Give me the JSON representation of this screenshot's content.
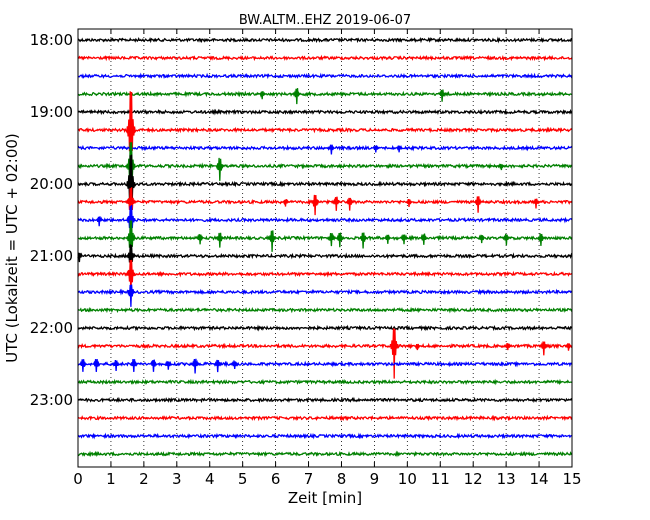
{
  "chart_data": {
    "type": "line",
    "title": "BW.ALTM..EHZ 2019-06-07",
    "xlabel": "Zeit  [min]",
    "ylabel": "UTC (Lokalzeit = UTC + 02:00)",
    "xlim": [
      0,
      15
    ],
    "x_ticks": [
      "0",
      "1",
      "2",
      "3",
      "4",
      "5",
      "6",
      "7",
      "8",
      "9",
      "10",
      "11",
      "12",
      "13",
      "14",
      "15"
    ],
    "y_tick_labels": [
      {
        "label": "18:00",
        "trace": 0
      },
      {
        "label": "19:00",
        "trace": 4
      },
      {
        "label": "20:00",
        "trace": 8
      },
      {
        "label": "21:00",
        "trace": 12
      },
      {
        "label": "22:00",
        "trace": 16
      },
      {
        "label": "23:00",
        "trace": 20
      }
    ],
    "grid": "vertical dotted",
    "trace_interval_min": 15,
    "trace_colors": [
      "#000000",
      "#ff0000",
      "#0000ff",
      "#008000"
    ],
    "traces": [
      {
        "start": "18:00",
        "events": []
      },
      {
        "start": "18:15",
        "events": []
      },
      {
        "start": "18:30",
        "events": []
      },
      {
        "start": "18:45",
        "events": [
          {
            "t": 5.6,
            "amp": 0.3
          },
          {
            "t": 6.65,
            "amp": 0.55
          },
          {
            "t": 11.05,
            "amp": 0.4
          }
        ]
      },
      {
        "start": "19:00",
        "events": []
      },
      {
        "start": "19:15",
        "events": [
          {
            "t": 1.6,
            "amp": 4.0
          }
        ]
      },
      {
        "start": "19:30",
        "events": [
          {
            "t": 7.7,
            "amp": 0.35
          },
          {
            "t": 9.05,
            "amp": 0.25
          },
          {
            "t": 9.75,
            "amp": 0.25
          }
        ]
      },
      {
        "start": "19:45",
        "events": [
          {
            "t": 1.6,
            "amp": 2.5
          },
          {
            "t": 4.3,
            "amp": 0.8
          },
          {
            "t": 12.85,
            "amp": 0.2
          }
        ]
      },
      {
        "start": "20:00",
        "events": [
          {
            "t": 1.6,
            "amp": 3.0
          }
        ]
      },
      {
        "start": "20:15",
        "events": [
          {
            "t": 1.6,
            "amp": 1.5
          },
          {
            "t": 6.3,
            "amp": 0.25
          },
          {
            "t": 7.2,
            "amp": 0.75
          },
          {
            "t": 7.85,
            "amp": 0.5
          },
          {
            "t": 8.25,
            "amp": 0.45
          },
          {
            "t": 10.05,
            "amp": 0.3
          },
          {
            "t": 12.15,
            "amp": 0.6
          },
          {
            "t": 13.9,
            "amp": 0.35
          }
        ]
      },
      {
        "start": "20:30",
        "events": [
          {
            "t": 0.65,
            "amp": 0.35
          },
          {
            "t": 1.6,
            "amp": 1.5
          }
        ]
      },
      {
        "start": "20:45",
        "events": [
          {
            "t": 1.6,
            "amp": 1.8
          },
          {
            "t": 3.7,
            "amp": 0.35
          },
          {
            "t": 4.3,
            "amp": 0.55
          },
          {
            "t": 5.9,
            "amp": 0.8
          },
          {
            "t": 7.7,
            "amp": 0.45
          },
          {
            "t": 7.95,
            "amp": 0.5
          },
          {
            "t": 8.65,
            "amp": 0.6
          },
          {
            "t": 9.4,
            "amp": 0.35
          },
          {
            "t": 9.9,
            "amp": 0.35
          },
          {
            "t": 10.5,
            "amp": 0.4
          },
          {
            "t": 12.25,
            "amp": 0.3
          },
          {
            "t": 13.0,
            "amp": 0.4
          },
          {
            "t": 14.05,
            "amp": 0.45
          }
        ]
      },
      {
        "start": "21:00",
        "events": [
          {
            "t": 0.05,
            "amp": 0.35
          },
          {
            "t": 1.6,
            "amp": 1.2
          }
        ]
      },
      {
        "start": "21:15",
        "events": [
          {
            "t": 1.6,
            "amp": 1.5
          }
        ]
      },
      {
        "start": "21:30",
        "events": [
          {
            "t": 1.6,
            "amp": 0.8
          }
        ]
      },
      {
        "start": "21:45",
        "events": []
      },
      {
        "start": "22:00",
        "events": []
      },
      {
        "start": "22:15",
        "events": [
          {
            "t": 9.6,
            "amp": 1.8
          },
          {
            "t": 10.3,
            "amp": 0.2
          },
          {
            "t": 13.05,
            "amp": 0.25
          },
          {
            "t": 14.15,
            "amp": 0.5
          },
          {
            "t": 14.9,
            "amp": 0.25
          }
        ]
      },
      {
        "start": "22:30",
        "events": [
          {
            "t": 0.15,
            "amp": 0.45
          },
          {
            "t": 0.55,
            "amp": 0.45
          },
          {
            "t": 1.15,
            "amp": 0.35
          },
          {
            "t": 1.7,
            "amp": 0.45
          },
          {
            "t": 2.3,
            "amp": 0.4
          },
          {
            "t": 2.75,
            "amp": 0.3
          },
          {
            "t": 3.55,
            "amp": 0.5
          },
          {
            "t": 4.25,
            "amp": 0.45
          },
          {
            "t": 4.75,
            "amp": 0.3
          }
        ]
      },
      {
        "start": "22:45",
        "events": []
      },
      {
        "start": "23:00",
        "events": []
      },
      {
        "start": "23:15",
        "events": []
      },
      {
        "start": "23:30",
        "events": []
      },
      {
        "start": "23:45",
        "events": []
      }
    ]
  }
}
